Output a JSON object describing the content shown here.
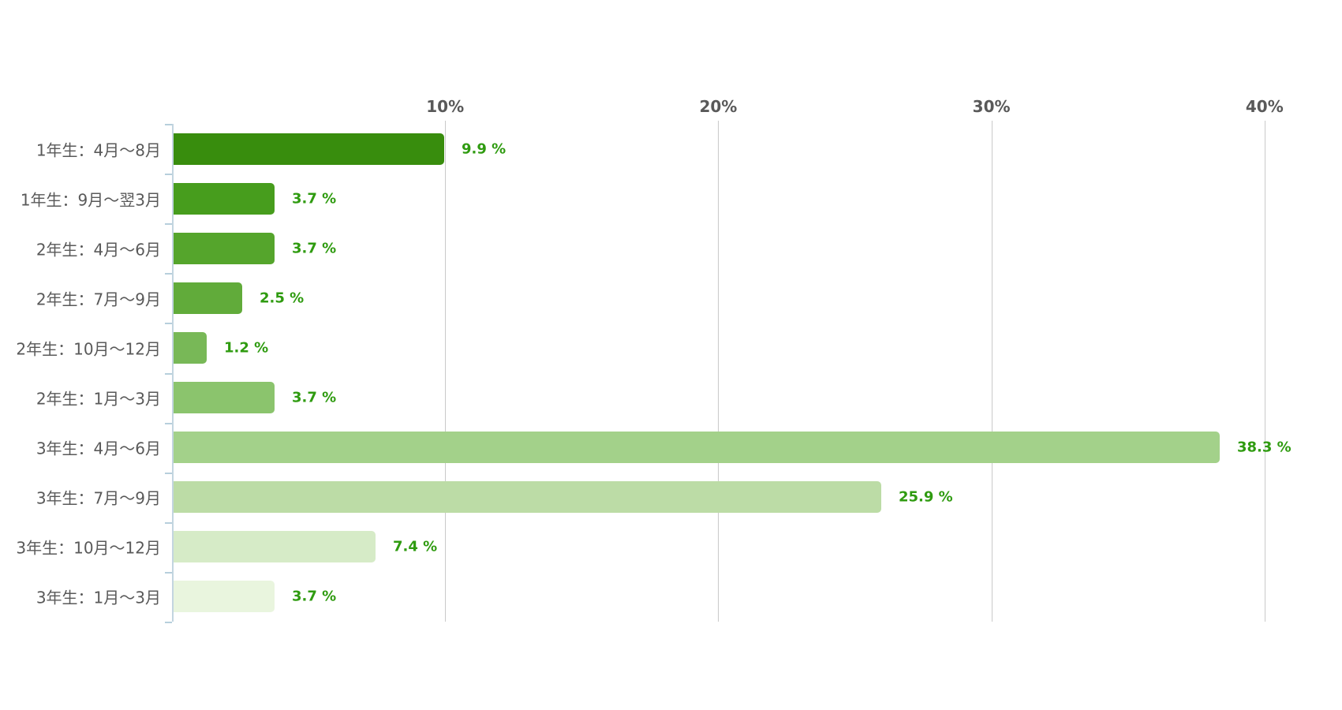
{
  "chart_data": {
    "type": "bar",
    "orientation": "horizontal",
    "title": "",
    "categories": [
      "1年生：4月〜8月",
      "1年生：9月〜翌3月",
      "2年生：4月〜6月",
      "2年生：7月〜9月",
      "2年生：10月〜12月",
      "2年生：1月〜3月",
      "3年生：4月〜6月",
      "3年生：7月〜9月",
      "3年生：10月〜12月",
      "3年生：1月〜3月"
    ],
    "values": [
      9.9,
      3.7,
      3.7,
      2.5,
      1.2,
      3.7,
      38.3,
      25.9,
      7.4,
      3.7
    ],
    "value_labels": [
      "9.9 %",
      "3.7 %",
      "3.7 %",
      "2.5 %",
      "1.2 %",
      "3.7 %",
      "38.3 %",
      "25.9 %",
      "7.4 %",
      "3.7 %"
    ],
    "bar_colors": [
      "#388d0d",
      "#479d1d",
      "#55a52c",
      "#61ab3a",
      "#78b857",
      "#8bc46d",
      "#a3d18a",
      "#bcdca6",
      "#d6ebc7",
      "#e9f5de"
    ],
    "x_axis": {
      "tick_labels": [
        "10%",
        "20%",
        "30%",
        "40%"
      ],
      "tick_values": [
        10,
        20,
        30,
        40
      ],
      "min": 0,
      "max": 40
    },
    "grid": true,
    "legend_position": "none"
  },
  "colors": {
    "value_label": "#2f9b10",
    "category_label": "#595959",
    "axis_tick_label": "#595959",
    "gridline": "#c9c9c9",
    "axis_line": "#c3d5e0",
    "background": "#ffffff"
  }
}
